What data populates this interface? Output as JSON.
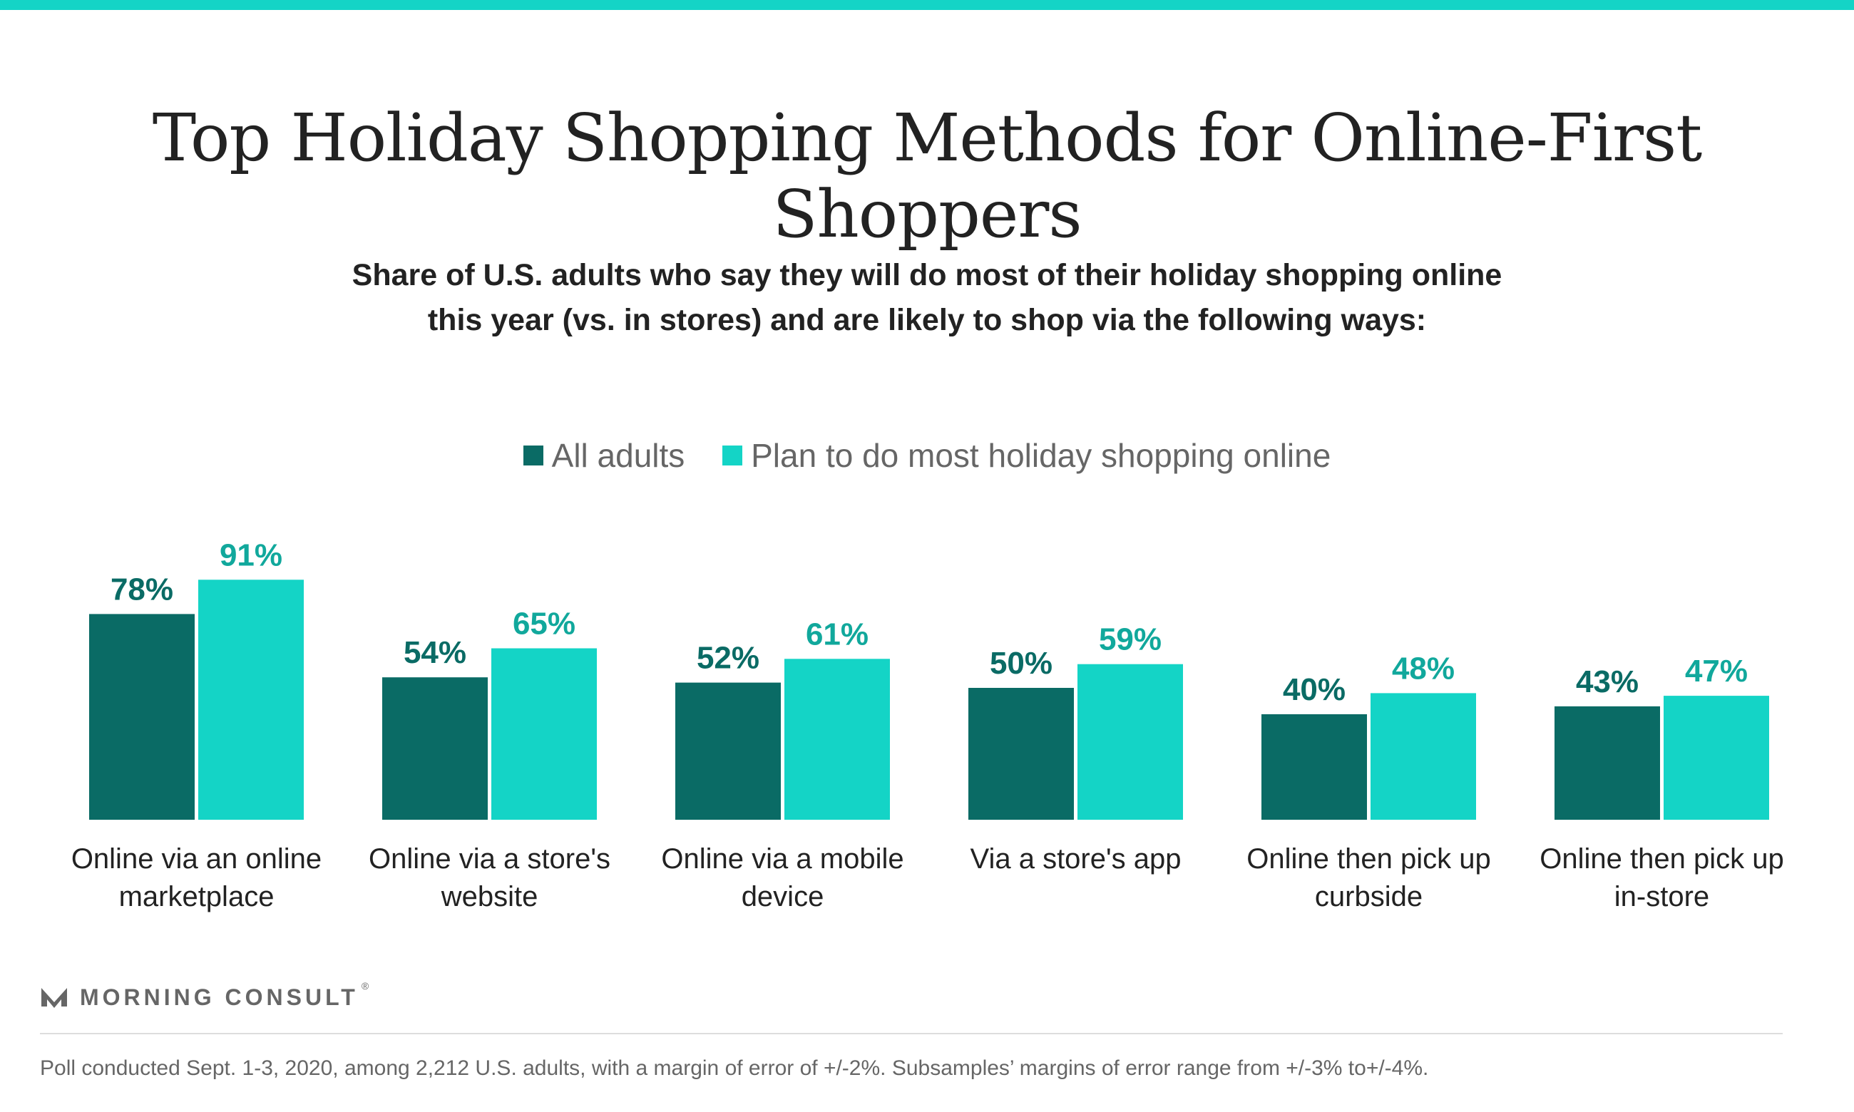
{
  "title": "Top Holiday Shopping Methods for Online-First Shoppers",
  "subtitle_line1": "Share of U.S. adults who say they will do most of their holiday shopping online",
  "subtitle_line2": "this year (vs. in stores) and are likely to shop via the following ways:",
  "logo": {
    "text": "MORNING CONSULT",
    "mark": "®"
  },
  "footnote": "Poll conducted Sept. 1-3, 2020, among 2,212 U.S. adults, with a margin of error of +/-2%. Subsamples’ margins of error range from +/-3% to+/-4%.",
  "colors": {
    "accent_bar": "#14d4c6",
    "all_adults": "#0a6b65",
    "online": "#14d4c6"
  },
  "chart_data": {
    "type": "bar",
    "categories": [
      [
        "Online via an online",
        "marketplace"
      ],
      [
        "Online via a store's",
        "website"
      ],
      [
        "Online via a mobile",
        "device"
      ],
      [
        "Via a store's app"
      ],
      [
        "Online then pick up",
        "curbside"
      ],
      [
        "Online then pick up",
        "in-store"
      ]
    ],
    "series": [
      {
        "name": "All adults",
        "color": "#0a6b65",
        "label_color": "#0a6b65",
        "values": [
          78,
          54,
          52,
          50,
          40,
          43
        ]
      },
      {
        "name": "Plan to do most holiday shopping online",
        "color": "#14d4c6",
        "label_color": "#11a89c",
        "values": [
          91,
          65,
          61,
          59,
          48,
          47
        ]
      }
    ],
    "value_suffix": "%",
    "ylim": [
      0,
      100
    ],
    "grid": false,
    "legend": "top-center"
  }
}
